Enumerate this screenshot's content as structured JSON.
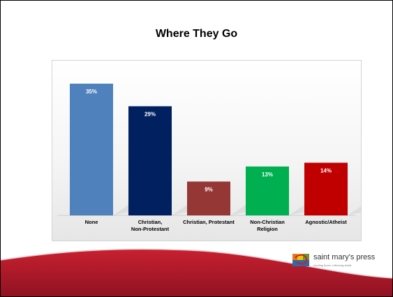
{
  "slide": {
    "title": "Where They Go"
  },
  "chart_data": {
    "type": "bar",
    "title": "Where They Go",
    "xlabel": "",
    "ylabel": "",
    "ylim": [
      0,
      40
    ],
    "grid": false,
    "legend": "none",
    "categories": [
      "None",
      "Christian, Non-Protestant",
      "Christian, Protestant",
      "Non-Christian Religion",
      "Agnostic/Atheist"
    ],
    "category_lines": [
      [
        "None"
      ],
      [
        "Christian,",
        "Non-Protestant"
      ],
      [
        "Christian, Protestant"
      ],
      [
        "Non-Christian",
        "Religion"
      ],
      [
        "Agnostic/Atheist"
      ]
    ],
    "values": [
      35,
      29,
      9,
      13,
      14
    ],
    "value_labels": [
      "35%",
      "29%",
      "9%",
      "13%",
      "14%"
    ],
    "colors": [
      "#4f81bd",
      "#002060",
      "#953735",
      "#00b050",
      "#c00000"
    ]
  },
  "logo": {
    "name": "saint mary's press",
    "tagline": "touching hearts. enlivening minds."
  },
  "colors": {
    "band_red": "#b71c2c",
    "band_dark": "#7e1020"
  }
}
